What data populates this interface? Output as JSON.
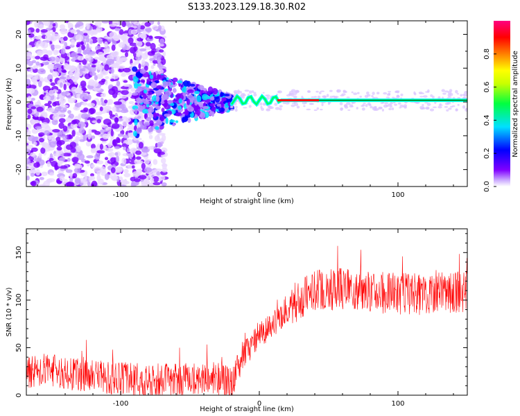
{
  "title": "S133.2023.129.18.30.R02",
  "chart_data": [
    {
      "type": "heatmap",
      "xlabel": "Height of straight line (km)",
      "ylabel": "Frequency (Hz)",
      "xlim": [
        -168,
        150
      ],
      "ylim": [
        -25,
        24
      ],
      "x_ticks": [
        -100,
        0,
        100
      ],
      "y_ticks": [
        -20,
        -10,
        0,
        10,
        20
      ],
      "colorbar": {
        "label": "Normalized spectral amplitude",
        "range": [
          0,
          1
        ],
        "ticks": [
          0.0,
          0.2,
          0.4,
          0.6,
          0.8
        ],
        "colormap": [
          "#ffffff",
          "#c9a6ff",
          "#8000ff",
          "#0000ff",
          "#00e0ff",
          "#00ff40",
          "#c8ff00",
          "#ffff00",
          "#ff8000",
          "#ff0000",
          "#ff0080"
        ]
      },
      "features": {
        "noise_region_km": [
          -168,
          -68
        ],
        "transition_region_km": [
          -90,
          -20
        ],
        "signal_line_start_km": -20,
        "signal_line_freq_hz": 0.5,
        "strong_segment_km": [
          13,
          43
        ]
      }
    },
    {
      "type": "line",
      "xlabel": "Height of straight line (km)",
      "ylabel": "SNR (10 * v/v)",
      "xlim": [
        -168,
        150
      ],
      "ylim": [
        0,
        175
      ],
      "x_ticks": [
        -100,
        0,
        100
      ],
      "y_ticks": [
        0,
        50,
        100,
        150
      ],
      "color": "#ff0000",
      "series": [
        {
          "x": [
            -168,
            -150,
            -130,
            -110,
            -90,
            -70,
            -50,
            -35,
            -25,
            -20,
            -15,
            -10,
            0,
            10,
            20,
            30,
            40,
            60,
            80,
            100,
            120,
            140,
            150
          ],
          "y": [
            25,
            26,
            22,
            18,
            16,
            16,
            16,
            20,
            15,
            10,
            30,
            45,
            62,
            75,
            90,
            103,
            110,
            112,
            108,
            107,
            106,
            108,
            110
          ]
        }
      ]
    }
  ]
}
